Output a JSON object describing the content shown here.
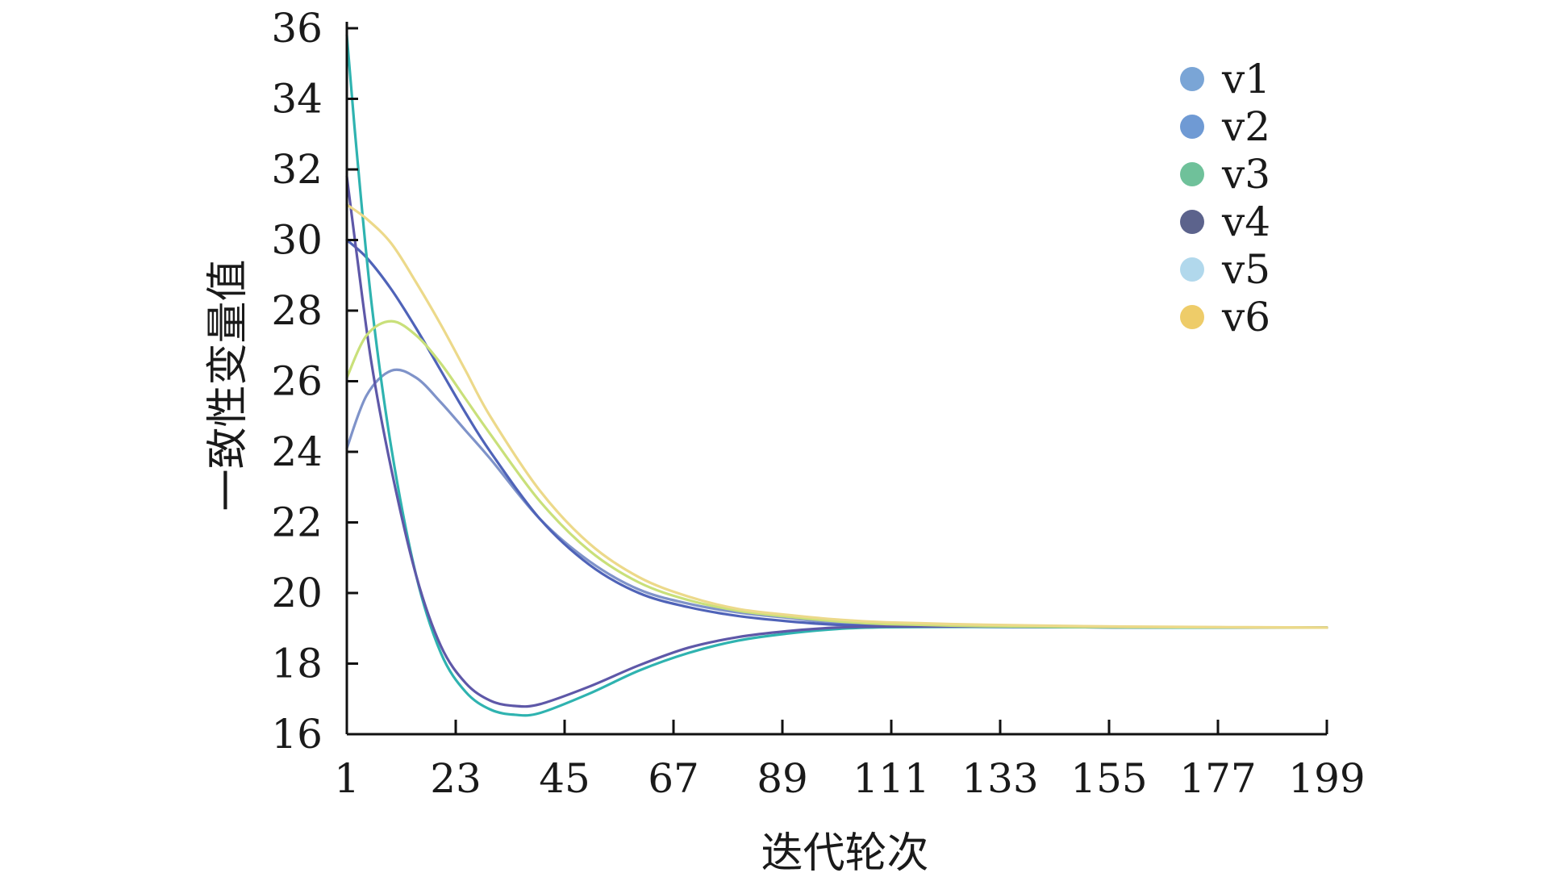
{
  "chart_data": {
    "type": "line",
    "title": "",
    "xlabel": "迭代轮次",
    "ylabel": "一致性变量值",
    "xlim": [
      1,
      199
    ],
    "ylim": [
      16,
      36
    ],
    "x_ticks": [
      1,
      23,
      45,
      67,
      89,
      111,
      133,
      155,
      177,
      199
    ],
    "y_ticks": [
      16,
      18,
      20,
      22,
      24,
      26,
      28,
      30,
      32,
      34,
      36
    ],
    "x_tick_labels": [
      "1",
      "23",
      "45",
      "67",
      "89",
      "111",
      "133",
      "155",
      "177",
      "199"
    ],
    "y_tick_labels": [
      "16",
      "18",
      "20",
      "22",
      "24",
      "26",
      "28",
      "30",
      "32",
      "34",
      "36"
    ],
    "grid": false,
    "legend_position": "top-right",
    "legend_colors": [
      "#6b9bd1",
      "#5f8fcf",
      "#5fba8f",
      "#4a5280",
      "#a8d4ea",
      "#ecc659"
    ],
    "series": [
      {
        "name": "v1",
        "color": "#7f93c9",
        "x": [
          1,
          5,
          10,
          15,
          20,
          25,
          30,
          40,
          50,
          60,
          70,
          80,
          90,
          100,
          110,
          130,
          150,
          170,
          199
        ],
        "values": [
          24.1,
          25.6,
          26.3,
          26.1,
          25.4,
          24.6,
          23.8,
          22.1,
          20.9,
          20.1,
          19.7,
          19.45,
          19.3,
          19.15,
          19.1,
          19.05,
          19.03,
          19.02,
          19.02
        ]
      },
      {
        "name": "v2",
        "color": "#4f63b8",
        "x": [
          1,
          5,
          10,
          15,
          20,
          25,
          30,
          40,
          50,
          60,
          70,
          80,
          90,
          100,
          110,
          130,
          150,
          170,
          199
        ],
        "values": [
          30.0,
          29.5,
          28.6,
          27.5,
          26.3,
          25.1,
          24.0,
          22.1,
          20.8,
          20.0,
          19.6,
          19.35,
          19.2,
          19.1,
          19.07,
          19.04,
          19.03,
          19.02,
          19.02
        ]
      },
      {
        "name": "v3",
        "color": "#2fb3b0",
        "x": [
          1,
          3,
          6,
          10,
          15,
          20,
          25,
          30,
          35,
          40,
          50,
          60,
          70,
          80,
          90,
          100,
          110,
          130,
          150,
          170,
          199
        ],
        "values": [
          35.8,
          32.5,
          28.2,
          24.1,
          20.5,
          18.3,
          17.2,
          16.7,
          16.55,
          16.6,
          17.15,
          17.8,
          18.3,
          18.65,
          18.85,
          18.98,
          19.03,
          19.04,
          19.03,
          19.02,
          19.02
        ]
      },
      {
        "name": "v4",
        "color": "#5e58a8",
        "x": [
          1,
          3,
          6,
          10,
          15,
          20,
          25,
          30,
          35,
          40,
          50,
          60,
          70,
          80,
          90,
          100,
          110,
          130,
          150,
          170,
          199
        ],
        "values": [
          31.8,
          29.6,
          26.5,
          23.5,
          20.5,
          18.5,
          17.45,
          16.95,
          16.8,
          16.85,
          17.35,
          17.95,
          18.45,
          18.75,
          18.92,
          19.02,
          19.05,
          19.05,
          19.04,
          19.03,
          19.02
        ]
      },
      {
        "name": "v5",
        "color": "#c9e07a",
        "x": [
          1,
          5,
          10,
          15,
          20,
          25,
          30,
          40,
          50,
          60,
          70,
          80,
          90,
          100,
          110,
          130,
          150,
          170,
          199
        ],
        "values": [
          26.1,
          27.3,
          27.7,
          27.3,
          26.5,
          25.5,
          24.5,
          22.6,
          21.2,
          20.3,
          19.8,
          19.5,
          19.33,
          19.2,
          19.12,
          19.06,
          19.04,
          19.03,
          19.02
        ]
      },
      {
        "name": "v6",
        "color": "#ecd98a",
        "x": [
          1,
          5,
          10,
          15,
          20,
          25,
          30,
          40,
          50,
          60,
          70,
          80,
          90,
          100,
          110,
          130,
          150,
          170,
          199
        ],
        "values": [
          31.0,
          30.6,
          29.9,
          28.8,
          27.6,
          26.3,
          25.0,
          22.9,
          21.4,
          20.45,
          19.9,
          19.55,
          19.38,
          19.25,
          19.17,
          19.1,
          19.06,
          19.04,
          19.02
        ]
      }
    ]
  }
}
